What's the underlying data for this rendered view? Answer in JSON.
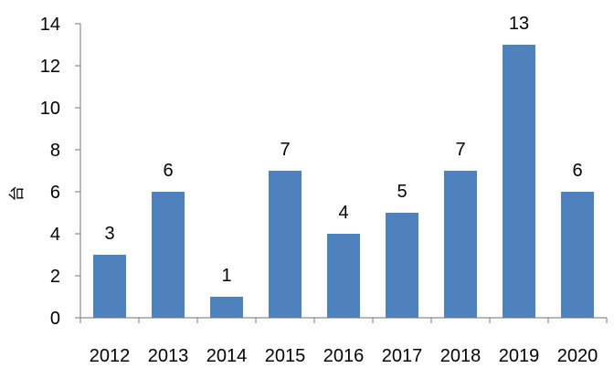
{
  "chart_data": {
    "type": "bar",
    "categories": [
      "2012",
      "2013",
      "2014",
      "2015",
      "2016",
      "2017",
      "2018",
      "2019",
      "2020"
    ],
    "values": [
      3,
      6,
      1,
      7,
      4,
      5,
      7,
      13,
      6
    ],
    "ylabel": "台",
    "ylim": [
      0,
      14
    ],
    "yticks": [
      0,
      2,
      4,
      6,
      8,
      10,
      12,
      14
    ],
    "grid": false,
    "legend": "none",
    "bar_color": "#4f81bd"
  }
}
